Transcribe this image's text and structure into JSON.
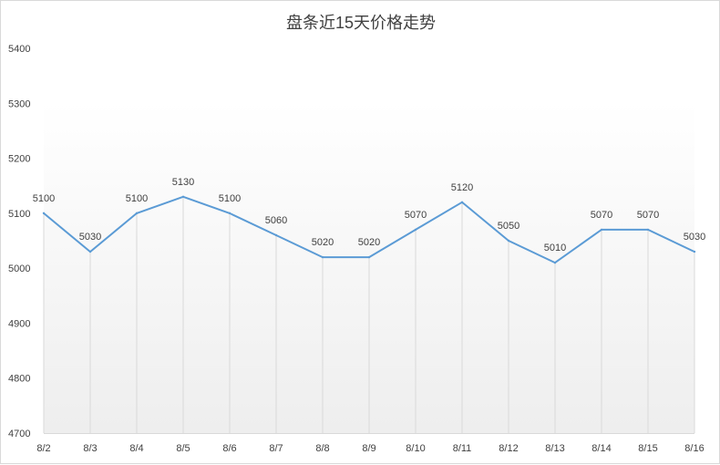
{
  "chart_data": {
    "type": "line",
    "title": "盘条近15天价格走势",
    "xlabel": "",
    "ylabel": "",
    "categories": [
      "8/2",
      "8/3",
      "8/4",
      "8/5",
      "8/6",
      "8/7",
      "8/8",
      "8/9",
      "8/10",
      "8/11",
      "8/12",
      "8/13",
      "8/14",
      "8/15",
      "8/16"
    ],
    "series": [
      {
        "values": [
          5100,
          5030,
          5100,
          5130,
          5100,
          5060,
          5020,
          5020,
          5070,
          5120,
          5050,
          5010,
          5070,
          5070,
          5030
        ]
      }
    ],
    "ylim": [
      4700,
      5400
    ],
    "yticks": [
      4700,
      4800,
      4900,
      5000,
      5100,
      5200,
      5300,
      5400
    ],
    "data_labels": true,
    "grid": "vertical",
    "legend": "none",
    "colors": {
      "line": "#5b9bd5",
      "grid": "#d9d9d9",
      "text": "#404040"
    }
  }
}
